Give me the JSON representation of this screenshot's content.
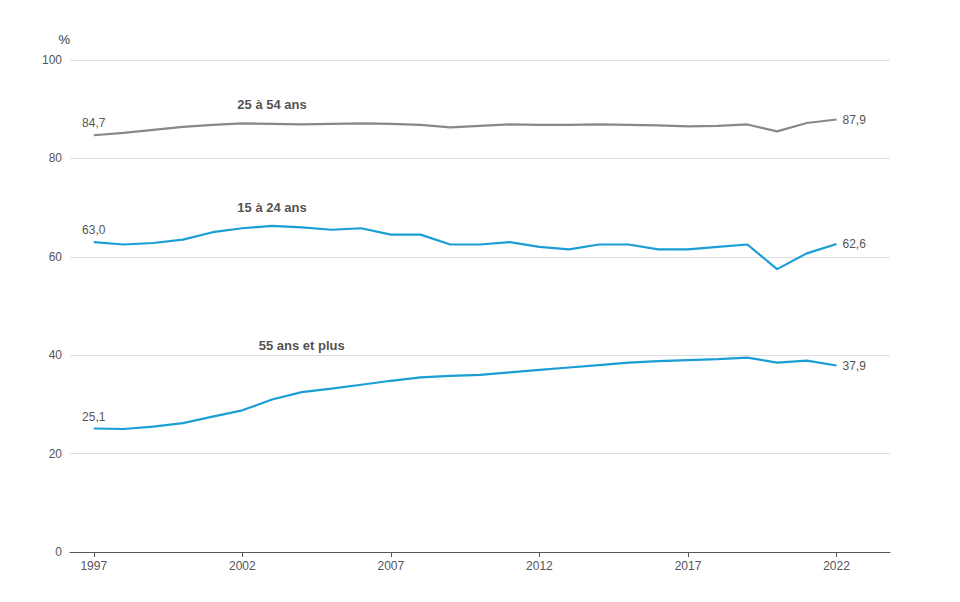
{
  "chart_data": {
    "type": "line",
    "x": [
      1997,
      1998,
      1999,
      2000,
      2001,
      2002,
      2003,
      2004,
      2005,
      2006,
      2007,
      2008,
      2009,
      2010,
      2011,
      2012,
      2013,
      2014,
      2015,
      2016,
      2017,
      2018,
      2019,
      2020,
      2021,
      2022
    ],
    "series": [
      {
        "name": "25 à 54 ans",
        "color": "#888888",
        "values": [
          84.7,
          85.2,
          85.8,
          86.4,
          86.8,
          87.1,
          87.0,
          86.9,
          87.0,
          87.1,
          87.0,
          86.8,
          86.3,
          86.6,
          86.9,
          86.8,
          86.8,
          86.9,
          86.8,
          86.7,
          86.5,
          86.6,
          86.9,
          85.5,
          87.2,
          87.9
        ],
        "value_labels": [
          "84,7",
          null,
          null,
          null,
          null,
          null,
          null,
          null,
          null,
          null,
          null,
          null,
          null,
          null,
          null,
          null,
          null,
          null,
          null,
          null,
          null,
          null,
          null,
          null,
          null,
          "87,9"
        ]
      },
      {
        "name": "15 à 24 ans",
        "color": "#1a9ed4",
        "values": [
          63.0,
          62.5,
          62.8,
          63.5,
          65.0,
          65.8,
          66.3,
          66.0,
          65.5,
          65.8,
          64.5,
          64.5,
          62.5,
          62.5,
          63.0,
          62.0,
          61.5,
          62.5,
          62.5,
          61.5,
          61.5,
          62.0,
          62.5,
          57.5,
          60.7,
          62.6
        ],
        "value_labels": [
          "63,0",
          null,
          null,
          null,
          null,
          null,
          null,
          null,
          null,
          null,
          null,
          null,
          null,
          null,
          null,
          null,
          null,
          null,
          null,
          null,
          null,
          null,
          null,
          null,
          null,
          "62,6"
        ]
      },
      {
        "name": "55 ans et plus",
        "color": "#1a9ed4",
        "values": [
          25.1,
          25.0,
          25.5,
          26.2,
          27.5,
          28.8,
          31.0,
          32.5,
          33.2,
          34.0,
          34.8,
          35.5,
          35.8,
          36.0,
          36.5,
          37.0,
          37.5,
          38.0,
          38.5,
          38.8,
          39.0,
          39.2,
          39.5,
          38.5,
          38.9,
          37.9
        ],
        "value_labels": [
          "25,1",
          null,
          null,
          null,
          null,
          null,
          null,
          null,
          null,
          null,
          null,
          null,
          null,
          null,
          null,
          null,
          null,
          null,
          null,
          null,
          null,
          null,
          null,
          null,
          null,
          "37,9"
        ]
      }
    ],
    "annotations": [
      {
        "text": "25 à 54 ans",
        "x": 2003,
        "y": 91.0
      },
      {
        "text": "15 à 24 ans",
        "x": 2003,
        "y": 70.0
      },
      {
        "text": "55 ans et plus",
        "x": 2004,
        "y": 42.0
      }
    ],
    "ylabel": "%",
    "xlim": [
      1996.2,
      2023.8
    ],
    "xticks": [
      1997,
      2002,
      2007,
      2012,
      2017,
      2022
    ],
    "ylim": [
      0,
      100
    ],
    "yticks": [
      0,
      20,
      40,
      60,
      80,
      100
    ],
    "grid": true
  }
}
